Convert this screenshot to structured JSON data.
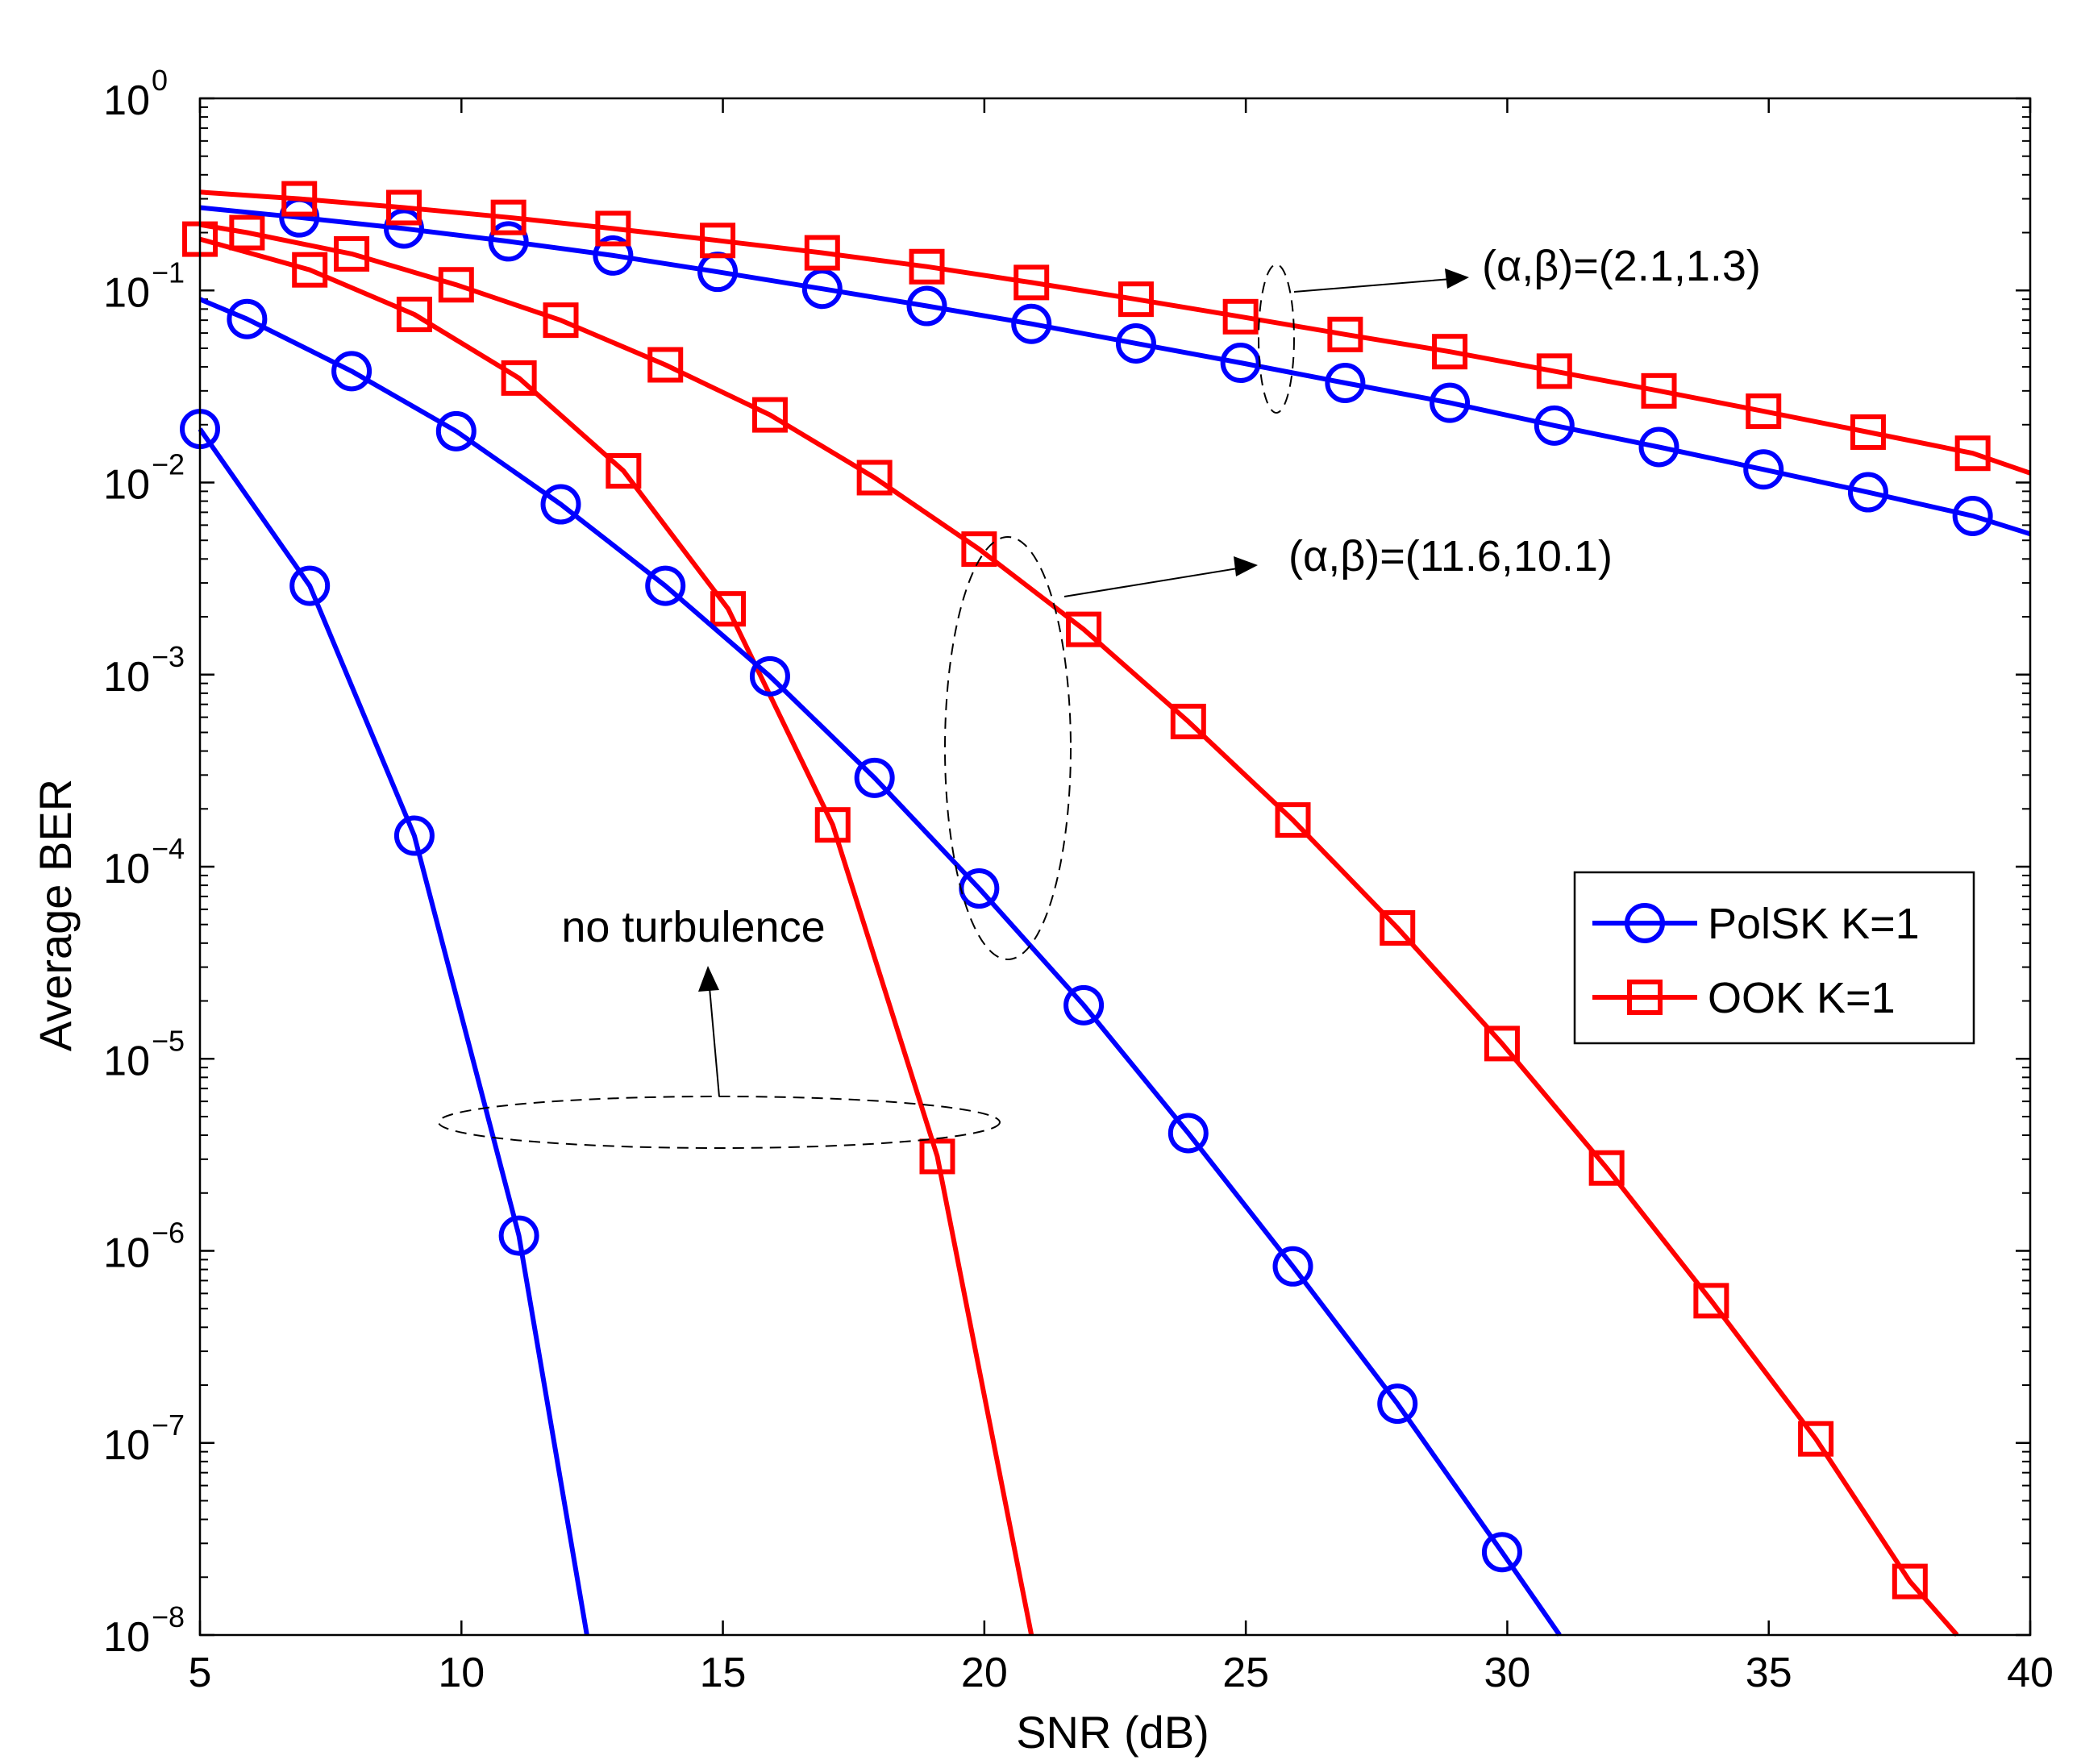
{
  "chart_data": {
    "type": "line",
    "title": "",
    "xlabel": "SNR (dB)",
    "ylabel": "Average  BER",
    "xlim": [
      5,
      40
    ],
    "ylim_log10": [
      -8,
      0
    ],
    "yscale": "log",
    "x_ticks": [
      "5",
      "10",
      "15",
      "20",
      "25",
      "30",
      "35",
      "40"
    ],
    "y_ticks": [
      {
        "base": "10",
        "exp": "0"
      },
      {
        "base": "10",
        "exp": "−1"
      },
      {
        "base": "10",
        "exp": "−2"
      },
      {
        "base": "10",
        "exp": "−3"
      },
      {
        "base": "10",
        "exp": "−4"
      },
      {
        "base": "10",
        "exp": "−5"
      },
      {
        "base": "10",
        "exp": "−6"
      },
      {
        "base": "10",
        "exp": "−7"
      },
      {
        "base": "10",
        "exp": "−8"
      }
    ],
    "legend": {
      "placement": "right-middle",
      "entries": [
        {
          "label": "PolSK K=1",
          "color": "#0000ff",
          "marker": "circle"
        },
        {
          "label": "OOK K=1",
          "color": "#ff0000",
          "marker": "square"
        }
      ]
    },
    "series": [
      {
        "name": "PolSK no turbulence",
        "color": "#0000ff",
        "marker": "circle",
        "x": [
          5,
          7.1,
          9.1,
          11.1,
          12.4
        ],
        "y": [
          0.019,
          0.0029,
          0.000145,
          1.2e-06,
          1e-08
        ],
        "marked": [
          true,
          true,
          true,
          true,
          false
        ]
      },
      {
        "name": "OOK no turbulence",
        "color": "#ff0000",
        "marker": "square",
        "x": [
          5,
          7.1,
          9.1,
          11.1,
          13.1,
          15.1,
          17.1,
          19.1,
          20.9
        ],
        "y": [
          0.185,
          0.128,
          0.075,
          0.035,
          0.0115,
          0.0022,
          0.000165,
          3.1e-06,
          1e-08
        ],
        "marked": [
          true,
          true,
          true,
          true,
          true,
          true,
          true,
          true,
          false
        ]
      },
      {
        "name": "PolSK (α,β)=(11.6,10.1)",
        "color": "#0000ff",
        "marker": "circle",
        "x": [
          5,
          5.9,
          7.9,
          9.9,
          11.9,
          13.9,
          15.9,
          17.9,
          19.9,
          21.9,
          23.9,
          25.9,
          27.9,
          29.9,
          31.0
        ],
        "y": [
          0.09,
          0.071,
          0.038,
          0.0185,
          0.0077,
          0.0029,
          0.00098,
          0.00029,
          7.7e-05,
          1.9e-05,
          4.1e-06,
          8.3e-07,
          1.6e-07,
          2.7e-08,
          1e-08
        ],
        "marked": [
          false,
          true,
          true,
          true,
          true,
          true,
          true,
          true,
          true,
          true,
          true,
          true,
          true,
          true,
          false
        ]
      },
      {
        "name": "OOK (α,β)=(11.6,10.1)",
        "color": "#ff0000",
        "marker": "square",
        "x": [
          5,
          5.9,
          7.9,
          9.9,
          11.9,
          13.9,
          15.9,
          17.9,
          19.9,
          21.9,
          23.9,
          25.9,
          27.9,
          29.9,
          31.9,
          33.9,
          35.9,
          37.7,
          38.6
        ],
        "y": [
          0.22,
          0.2,
          0.155,
          0.107,
          0.07,
          0.041,
          0.0225,
          0.0106,
          0.0045,
          0.00172,
          0.00057,
          0.000175,
          4.8e-05,
          1.2e-05,
          2.7e-06,
          5.5e-07,
          1.05e-07,
          1.9e-08,
          1e-08
        ],
        "marked": [
          false,
          true,
          true,
          true,
          true,
          true,
          true,
          true,
          true,
          true,
          true,
          true,
          true,
          true,
          true,
          true,
          true,
          true,
          false
        ]
      },
      {
        "name": "PolSK (α,β)=(2.1,1.3)",
        "color": "#0000ff",
        "marker": "circle",
        "x": [
          5,
          6.9,
          8.9,
          10.9,
          12.9,
          14.9,
          16.9,
          18.9,
          20.9,
          22.9,
          24.9,
          26.9,
          28.9,
          30.9,
          32.9,
          34.9,
          36.9,
          38.9,
          40
        ],
        "y": [
          0.27,
          0.24,
          0.21,
          0.18,
          0.152,
          0.125,
          0.102,
          0.083,
          0.067,
          0.053,
          0.042,
          0.033,
          0.026,
          0.0198,
          0.0153,
          0.0117,
          0.0089,
          0.0067,
          0.0054
        ],
        "marked": [
          false,
          true,
          true,
          true,
          true,
          true,
          true,
          true,
          true,
          true,
          true,
          true,
          true,
          true,
          true,
          true,
          true,
          true,
          false
        ]
      },
      {
        "name": "OOK (α,β)=(2.1,1.3)",
        "color": "#ff0000",
        "marker": "square",
        "x": [
          5,
          6.9,
          8.9,
          10.9,
          12.9,
          14.9,
          16.9,
          18.9,
          20.9,
          22.9,
          24.9,
          26.9,
          28.9,
          30.9,
          32.9,
          34.9,
          36.9,
          38.9,
          40
        ],
        "y": [
          0.325,
          0.3,
          0.27,
          0.24,
          0.21,
          0.182,
          0.157,
          0.133,
          0.11,
          0.09,
          0.073,
          0.059,
          0.048,
          0.038,
          0.03,
          0.0235,
          0.0183,
          0.0142,
          0.0112
        ],
        "marked": [
          false,
          true,
          true,
          true,
          true,
          true,
          true,
          true,
          true,
          true,
          true,
          true,
          true,
          true,
          true,
          true,
          true,
          true,
          false
        ]
      }
    ],
    "annotations": [
      {
        "text": "(α,β)=(2.1,1.3)"
      },
      {
        "text": "(α,β)=(11.6,10.1)"
      },
      {
        "text": "no turbulence"
      }
    ]
  }
}
